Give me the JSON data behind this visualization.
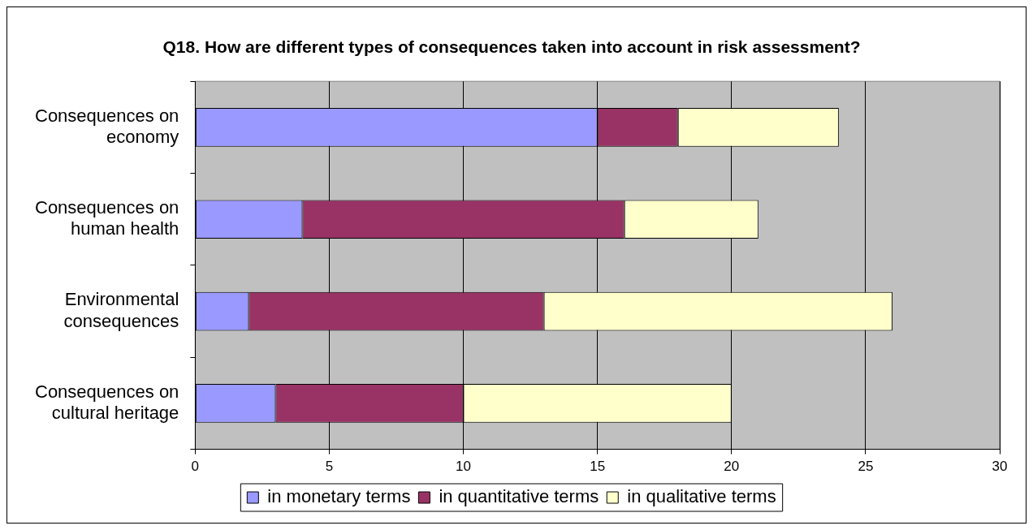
{
  "chart_data": {
    "type": "bar",
    "orientation": "horizontal",
    "stacked": true,
    "title": "Q18. How are different types of consequences taken into account in risk assessment?",
    "categories": [
      "Consequences on economy",
      "Consequences on human health",
      "Environmental consequences",
      "Consequences on cultural heritage"
    ],
    "series": [
      {
        "name": "in monetary terms",
        "color": "#9999ff",
        "values": [
          15,
          4,
          2,
          3
        ]
      },
      {
        "name": "in quantitative terms",
        "color": "#993366",
        "values": [
          3,
          12,
          11,
          7
        ]
      },
      {
        "name": "in qualitative terms",
        "color": "#ffffcc",
        "values": [
          6,
          5,
          13,
          10
        ]
      }
    ],
    "xlim": [
      0,
      30
    ],
    "xticks": [
      0,
      5,
      10,
      15,
      20,
      25,
      30
    ],
    "grid": "x",
    "legend": "bottom"
  }
}
